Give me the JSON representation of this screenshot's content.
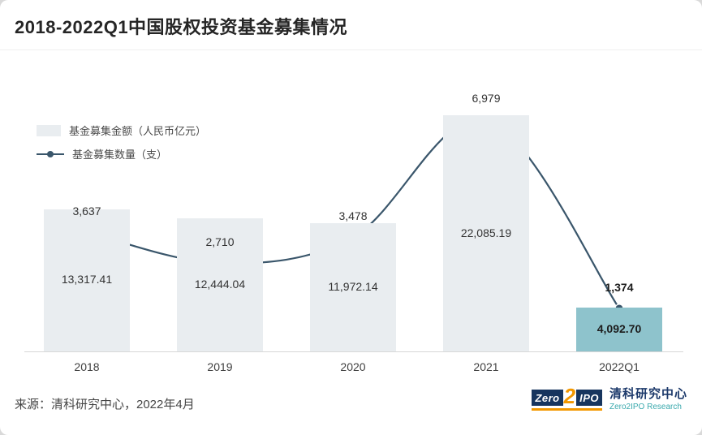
{
  "header": {
    "title": "2018-2022Q1中国股权投资基金募集情况"
  },
  "footer": {
    "source": "来源：清科研究中心，2022年4月"
  },
  "logo": {
    "zero": "Zero",
    "two": "2",
    "ipo": "IPO",
    "cn": "清科研究中心",
    "en": "Zero2IPO Research"
  },
  "chart_data": {
    "type": "bar+line",
    "title": "2018-2022Q1中国股权投资基金募集情况",
    "categories": [
      "2018",
      "2019",
      "2020",
      "2021",
      "2022Q1"
    ],
    "series": [
      {
        "name": "基金募集金额（人民币亿元）",
        "type": "bar",
        "values": [
          13317.41,
          12444.04,
          11972.14,
          22085.19,
          4092.7
        ],
        "labels": [
          "13,317.41",
          "12,444.04",
          "11,972.14",
          "22,085.19",
          "4,092.70"
        ]
      },
      {
        "name": "基金募集数量（支）",
        "type": "line",
        "values": [
          3637,
          2710,
          3478,
          6979,
          1374
        ],
        "labels": [
          "3,637",
          "2,710",
          "3,478",
          "6,979",
          "1,374"
        ]
      }
    ],
    "highlight_index": 4,
    "colors": {
      "bar": "#e9edf0",
      "bar_highlight": "#8ec3cc",
      "line": "#3a566b"
    },
    "legend_position": "top-left",
    "grid": false,
    "bar_axis_min": 0,
    "line_axis_min": 0
  }
}
